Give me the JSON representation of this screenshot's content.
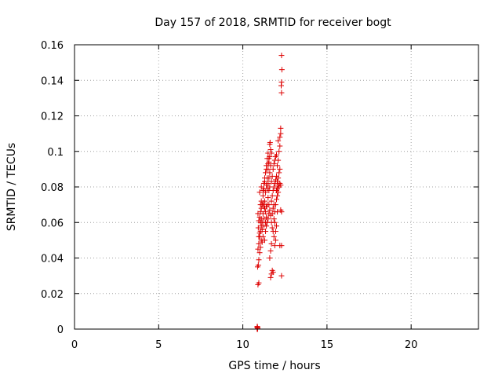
{
  "chart_data": {
    "type": "scatter",
    "title": "Day 157 of 2018, SRMTID for receiver bogt",
    "xlabel": "GPS time / hours",
    "ylabel": "SRMTID / TECUs",
    "xlim": [
      0,
      24
    ],
    "ylim": [
      0,
      0.16
    ],
    "xticks": [
      0,
      5,
      10,
      15,
      20
    ],
    "xtick_labels": [
      "0",
      "5",
      "10",
      "15",
      "20"
    ],
    "yticks": [
      0,
      0.02,
      0.04,
      0.06,
      0.08,
      0.1,
      0.12,
      0.14,
      0.16
    ],
    "ytick_labels": [
      "0",
      "0.02",
      "0.04",
      "0.06",
      "0.08",
      "0.1",
      "0.12",
      "0.14",
      "0.16"
    ],
    "grid": true,
    "marker": "plus",
    "series": [
      {
        "name": "SRMTID",
        "color": "#dd0000",
        "points": [
          [
            10.85,
            0.0
          ],
          [
            10.86,
            0.0
          ],
          [
            10.87,
            0.0
          ],
          [
            10.88,
            0.0
          ],
          [
            10.85,
            0.001
          ],
          [
            10.87,
            0.001
          ],
          [
            10.86,
            0.0015
          ],
          [
            10.88,
            0.0005
          ],
          [
            10.9,
            0.025
          ],
          [
            10.95,
            0.026
          ],
          [
            10.88,
            0.035
          ],
          [
            10.92,
            0.036
          ],
          [
            10.95,
            0.039
          ],
          [
            11.0,
            0.043
          ],
          [
            10.9,
            0.045
          ],
          [
            11.05,
            0.046
          ],
          [
            10.95,
            0.048
          ],
          [
            11.1,
            0.05
          ],
          [
            11.15,
            0.049
          ],
          [
            11.2,
            0.052
          ],
          [
            11.0,
            0.052
          ],
          [
            11.05,
            0.055
          ],
          [
            10.92,
            0.057
          ],
          [
            11.1,
            0.058
          ],
          [
            11.15,
            0.06
          ],
          [
            10.95,
            0.061
          ],
          [
            11.0,
            0.063
          ],
          [
            10.9,
            0.065
          ],
          [
            11.05,
            0.066
          ],
          [
            11.1,
            0.068
          ],
          [
            11.15,
            0.07
          ],
          [
            11.2,
            0.071
          ],
          [
            11.25,
            0.069
          ],
          [
            11.3,
            0.072
          ],
          [
            11.2,
            0.075
          ],
          [
            11.35,
            0.077
          ],
          [
            11.0,
            0.077
          ],
          [
            11.1,
            0.08
          ],
          [
            11.25,
            0.079
          ],
          [
            11.4,
            0.081
          ],
          [
            11.3,
            0.083
          ],
          [
            11.45,
            0.085
          ],
          [
            11.35,
            0.088
          ],
          [
            11.5,
            0.09
          ],
          [
            11.4,
            0.092
          ],
          [
            11.55,
            0.094
          ],
          [
            11.45,
            0.096
          ],
          [
            11.6,
            0.097
          ],
          [
            11.5,
            0.099
          ],
          [
            11.65,
            0.101
          ],
          [
            11.6,
            0.104
          ],
          [
            11.62,
            0.105
          ],
          [
            11.3,
            0.05
          ],
          [
            11.35,
            0.055
          ],
          [
            11.4,
            0.058
          ],
          [
            11.45,
            0.06
          ],
          [
            11.5,
            0.062
          ],
          [
            11.55,
            0.065
          ],
          [
            11.6,
            0.067
          ],
          [
            11.65,
            0.064
          ],
          [
            11.7,
            0.06
          ],
          [
            11.75,
            0.057
          ],
          [
            11.8,
            0.055
          ],
          [
            11.85,
            0.052
          ],
          [
            11.7,
            0.048
          ],
          [
            11.65,
            0.044
          ],
          [
            11.6,
            0.04
          ],
          [
            11.75,
            0.033
          ],
          [
            11.7,
            0.031
          ],
          [
            11.65,
            0.029
          ],
          [
            11.8,
            0.032
          ],
          [
            11.9,
            0.047
          ],
          [
            11.95,
            0.05
          ],
          [
            12.0,
            0.058
          ],
          [
            11.85,
            0.062
          ],
          [
            11.9,
            0.066
          ],
          [
            11.95,
            0.07
          ],
          [
            12.0,
            0.073
          ],
          [
            12.05,
            0.075
          ],
          [
            11.8,
            0.078
          ],
          [
            11.85,
            0.08
          ],
          [
            11.9,
            0.082
          ],
          [
            11.95,
            0.084
          ],
          [
            12.0,
            0.086
          ],
          [
            12.05,
            0.083
          ],
          [
            12.1,
            0.081
          ],
          [
            12.15,
            0.08
          ],
          [
            12.2,
            0.082
          ],
          [
            12.25,
            0.081
          ],
          [
            12.1,
            0.085
          ],
          [
            12.15,
            0.088
          ],
          [
            12.2,
            0.09
          ],
          [
            12.05,
            0.092
          ],
          [
            12.1,
            0.095
          ],
          [
            12.0,
            0.098
          ],
          [
            12.15,
            0.1
          ],
          [
            12.2,
            0.103
          ],
          [
            12.1,
            0.106
          ],
          [
            12.2,
            0.108
          ],
          [
            12.25,
            0.11
          ],
          [
            12.25,
            0.113
          ],
          [
            12.3,
            0.133
          ],
          [
            12.28,
            0.137
          ],
          [
            12.3,
            0.139
          ],
          [
            12.32,
            0.146
          ],
          [
            12.3,
            0.154
          ],
          [
            12.25,
            0.067
          ],
          [
            12.3,
            0.066
          ],
          [
            12.2,
            0.047
          ],
          [
            12.3,
            0.047
          ],
          [
            12.3,
            0.03
          ],
          [
            12.05,
            0.066
          ],
          [
            11.75,
            0.075
          ],
          [
            11.7,
            0.072
          ],
          [
            11.55,
            0.07
          ],
          [
            11.5,
            0.074
          ],
          [
            11.45,
            0.07
          ],
          [
            11.25,
            0.062
          ],
          [
            11.2,
            0.065
          ],
          [
            11.1,
            0.062
          ],
          [
            11.05,
            0.06
          ],
          [
            11.0,
            0.054
          ],
          [
            10.95,
            0.052
          ],
          [
            11.15,
            0.056
          ],
          [
            11.25,
            0.058
          ],
          [
            11.35,
            0.06
          ],
          [
            11.4,
            0.063
          ],
          [
            11.55,
            0.078
          ],
          [
            11.6,
            0.08
          ],
          [
            11.7,
            0.083
          ],
          [
            11.75,
            0.086
          ],
          [
            11.8,
            0.09
          ],
          [
            11.85,
            0.093
          ],
          [
            11.9,
            0.095
          ],
          [
            11.95,
            0.097
          ],
          [
            11.65,
            0.092
          ],
          [
            11.6,
            0.088
          ],
          [
            11.55,
            0.085
          ],
          [
            11.5,
            0.082
          ],
          [
            11.45,
            0.079
          ],
          [
            11.3,
            0.068
          ],
          [
            11.35,
            0.066
          ],
          [
            11.4,
            0.069
          ],
          [
            11.05,
            0.07
          ],
          [
            11.1,
            0.072
          ],
          [
            11.2,
            0.078
          ],
          [
            11.25,
            0.082
          ],
          [
            11.3,
            0.085
          ],
          [
            11.4,
            0.09
          ],
          [
            11.5,
            0.093
          ],
          [
            11.55,
            0.096
          ],
          [
            11.7,
            0.099
          ],
          [
            12.0,
            0.078
          ],
          [
            12.05,
            0.079
          ],
          [
            12.1,
            0.077
          ],
          [
            11.85,
            0.07
          ],
          [
            11.8,
            0.068
          ],
          [
            11.75,
            0.065
          ],
          [
            11.9,
            0.06
          ],
          [
            11.95,
            0.055
          ]
        ]
      }
    ]
  }
}
